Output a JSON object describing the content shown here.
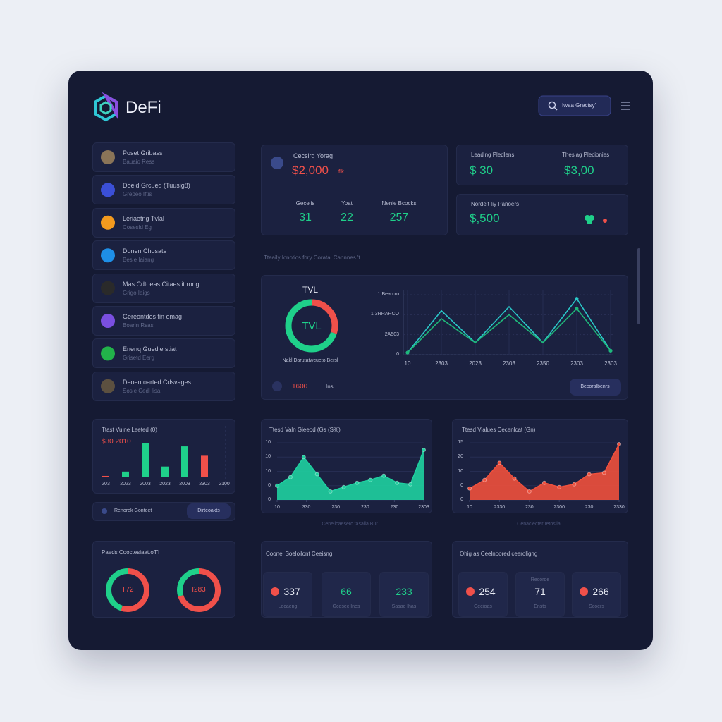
{
  "header": {
    "logo": "DeFi",
    "search": "Iwaa Grectsy'"
  },
  "sidebar": [
    {
      "title": "Poset Gribass",
      "subtitle": "Bauaio Ress",
      "color": "#8a7458"
    },
    {
      "title": "Doeid Grcued (Tuusig8)",
      "subtitle": "Grepeo Iftis",
      "color": "#3b4fd6"
    },
    {
      "title": "Leriaetng Tvlal",
      "subtitle": "Cosesld Eg",
      "color": "#f39a1e"
    },
    {
      "title": "Donen Chosats",
      "subtitle": "Besie Iaiang",
      "color": "#1e8fe8"
    },
    {
      "title": "Mas Cdtoeas Citaes it rong",
      "subtitle": "Grigo Iaigs",
      "color": "#2a2a2a"
    },
    {
      "title": "Gereontdes fin omag",
      "subtitle": "Boarin Rsas",
      "color": "#7a4fe0"
    },
    {
      "title": "Enenq Guedie stiat",
      "subtitle": "Grisetd Eerg",
      "color": "#22b24a"
    },
    {
      "title": "Deoentoarted Cdsvages",
      "subtitle": "Sosie Cedl Iisa",
      "color": "#5c5040"
    }
  ],
  "summary": {
    "title": "Cecsirg Yorag",
    "value": "$2,000",
    "unit": "flk",
    "stats": [
      {
        "label": "Gecelis",
        "value": "31"
      },
      {
        "label": "Yoat",
        "value": "22"
      },
      {
        "label": "Nenie Bcocks",
        "value": "257"
      }
    ]
  },
  "leading": {
    "left_label": "Leading Pledlens",
    "left_value": "$ 30",
    "right_label": "Thesiag Plecionies",
    "right_value": "$3,00"
  },
  "monitor": {
    "label": "Nordeit Iiy Panoers",
    "value": "$,500"
  },
  "caption": "Tteaily Icnotics fory Coratal Cannnes 't",
  "tvl_footer": {
    "value": "1600",
    "unit": "Ins",
    "button": "Becoralbenrs"
  },
  "bar_footer": {
    "label": "Renorek Gonteet",
    "button": "Dirteoakts"
  },
  "donut_panel": {
    "title": "Paeds Cooctesiaat.oT'l"
  },
  "stats_a": {
    "title": "Coonel Soeloilont Ceeisng",
    "items": [
      {
        "value": "337",
        "label": "Lecaeng",
        "color": "#e6e9f3",
        "icon": "#f0504a"
      },
      {
        "value": "66",
        "label": "Gcosec Ines",
        "color": "#1fd08a"
      },
      {
        "value": "233",
        "label": "Sasac Ihas",
        "color": "#1fd08a"
      }
    ]
  },
  "stats_b": {
    "title": "Ohig as Ceelnoored ceeroligng",
    "items": [
      {
        "value": "254",
        "label": "Ceeioas",
        "color": "#e6e9f3",
        "icon": "#f0504a"
      },
      {
        "value": "71",
        "label": "Ensts",
        "top": "Recorde",
        "color": "#e6e9f3"
      },
      {
        "value": "266",
        "label": "Scoers",
        "color": "#e6e9f3",
        "icon": "#f0504a"
      }
    ]
  },
  "chart_data": [
    {
      "type": "donut",
      "title": "TVL",
      "center_label": "TVL",
      "caption": "Nakl Darutatwcueto Bersl",
      "values": [
        30,
        70
      ],
      "colors": [
        "#f0504a",
        "#1fd08a"
      ]
    },
    {
      "type": "line",
      "categories": [
        "10",
        "2303",
        "2023",
        "2303",
        "2350",
        "2303",
        "2303"
      ],
      "ylim": [
        0,
        3
      ],
      "yticks": [
        0,
        {
          "value": 1,
          "label": "2A503"
        },
        {
          "value": 2,
          "label": "1 3RRARCO"
        },
        {
          "value": 3,
          "label": "1 Bearcro"
        }
      ],
      "grid": true,
      "series": [
        {
          "color": "#2ac8c8",
          "values": [
            0.1,
            2.2,
            0.6,
            2.4,
            0.6,
            2.8,
            0.2
          ]
        },
        {
          "color": "#1fb87a",
          "values": [
            0.1,
            1.8,
            0.6,
            2.0,
            0.6,
            2.3,
            0.2
          ]
        }
      ]
    },
    {
      "type": "bar",
      "title": "Ttast Vulne Leeted (0)",
      "subtitle": "$30 2010",
      "categories": [
        "203",
        "2023",
        "2003",
        "2023",
        "2003",
        "2303",
        "2100"
      ],
      "values": [
        2,
        8,
        47,
        15,
        43,
        30,
        null
      ],
      "colors": [
        "#f0504a",
        "#1fd08a",
        "#1fd08a",
        "#1fd08a",
        "#1fd08a",
        "#f0504a",
        "#1fd08a"
      ]
    },
    {
      "type": "area",
      "title": "Ttesd Valn Gieeod (Gs (S%)",
      "caption": "Cenelicaeserc tasalia Bur",
      "color": "#1fd0a0",
      "x": [
        0,
        1,
        2,
        3,
        4,
        5,
        6,
        7,
        8,
        9,
        10,
        11
      ],
      "values": [
        1.0,
        1.6,
        3.0,
        1.8,
        0.6,
        0.9,
        1.2,
        1.4,
        1.7,
        1.2,
        1.1,
        3.5
      ],
      "xlim": [
        0,
        11
      ],
      "xticks": [
        {
          "value": 0,
          "label": "10"
        },
        {
          "value": 2.2,
          "label": "330"
        },
        {
          "value": 4.4,
          "label": "230"
        },
        {
          "value": 6.6,
          "label": "230"
        },
        {
          "value": 8.8,
          "label": "230"
        },
        {
          "value": 11,
          "label": "2303"
        }
      ],
      "ylim": [
        0,
        4
      ],
      "yticks": [
        0,
        {
          "value": 1,
          "label": "0"
        },
        {
          "value": 2,
          "label": "10"
        },
        {
          "value": 3,
          "label": "10"
        },
        {
          "value": 4,
          "label": "10"
        }
      ]
    },
    {
      "type": "area",
      "title": "Ttesd Vialues Cecenlcat (Gn)",
      "caption": "Cenaclecter Ietoslia",
      "color": "#f0503c",
      "x": [
        0,
        1,
        2,
        3,
        4,
        5,
        6,
        7,
        8,
        9,
        10
      ],
      "values": [
        0.8,
        1.4,
        2.6,
        1.5,
        0.6,
        1.2,
        0.9,
        1.1,
        1.8,
        1.9,
        3.9
      ],
      "xlim": [
        0,
        10
      ],
      "xticks": [
        {
          "value": 0,
          "label": "10"
        },
        {
          "value": 2,
          "label": "2330"
        },
        {
          "value": 4,
          "label": "230"
        },
        {
          "value": 6,
          "label": "2300"
        },
        {
          "value": 8,
          "label": "230"
        },
        {
          "value": 10,
          "label": "2330"
        }
      ],
      "ylim": [
        0,
        4
      ],
      "yticks": [
        0,
        {
          "value": 1,
          "label": "0"
        },
        {
          "value": 2,
          "label": "10"
        },
        {
          "value": 3,
          "label": "20"
        },
        {
          "value": 4,
          "label": "15"
        }
      ]
    },
    {
      "type": "donut",
      "center_label": "T72",
      "values": [
        55,
        45
      ],
      "colors": [
        "#f0504a",
        "#1fd08a"
      ]
    },
    {
      "type": "donut",
      "center_label": "I283",
      "values": [
        70,
        30
      ],
      "colors": [
        "#f0504a",
        "#1fd08a"
      ]
    }
  ]
}
